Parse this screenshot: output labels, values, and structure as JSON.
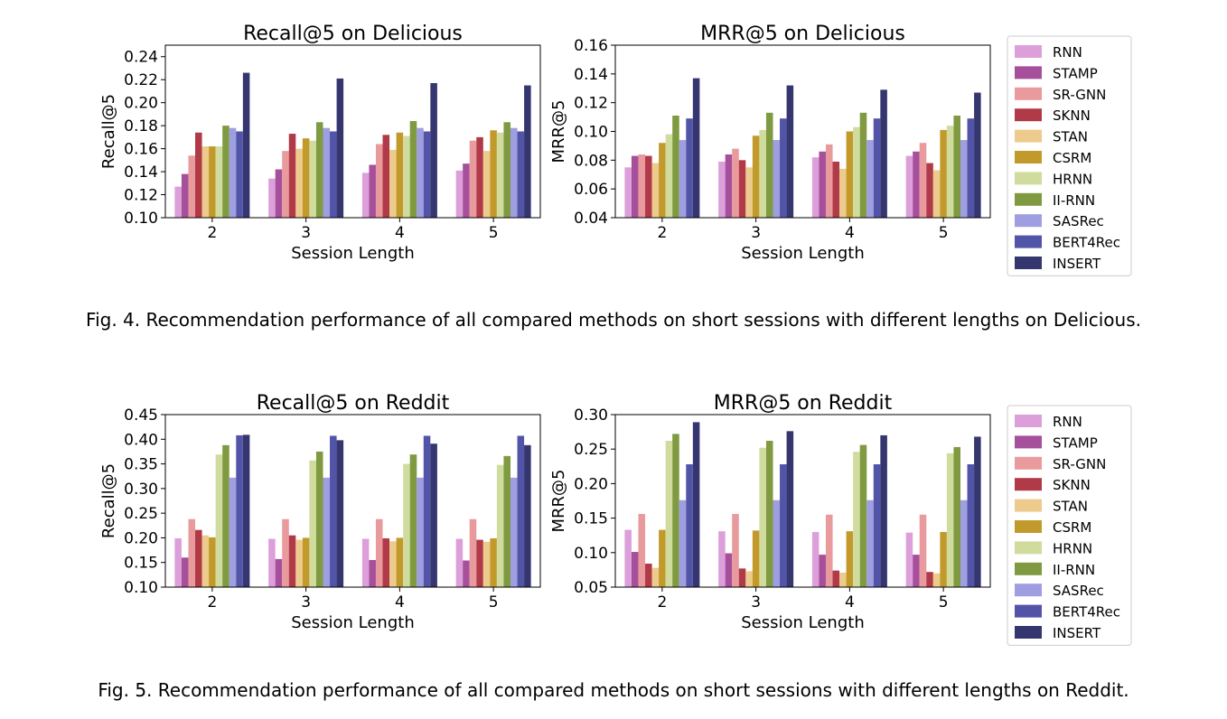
{
  "methods": [
    {
      "name": "RNN",
      "color": "#dd9fda"
    },
    {
      "name": "STAMP",
      "color": "#a6509b"
    },
    {
      "name": "SR-GNN",
      "color": "#e99a9c"
    },
    {
      "name": "SKNN",
      "color": "#b03a48"
    },
    {
      "name": "STAN",
      "color": "#eccb8c"
    },
    {
      "name": "CSRM",
      "color": "#c29a2b"
    },
    {
      "name": "HRNN",
      "color": "#cfdc9d"
    },
    {
      "name": "II-RNN",
      "color": "#7f9a41"
    },
    {
      "name": "SASRec",
      "color": "#9e9ee0"
    },
    {
      "name": "BERT4Rec",
      "color": "#5254a8"
    },
    {
      "name": "INSERT",
      "color": "#35366f"
    }
  ],
  "captions": {
    "fig4": "Fig. 4.  Recommendation performance of all compared methods on short sessions with different lengths on Delicious.",
    "fig5": "Fig. 5.  Recommendation performance of all compared methods on short sessions with different lengths on Reddit."
  },
  "chart_data": [
    {
      "type": "bar",
      "title": "Recall@5 on Delicious",
      "xlabel": "Session Length",
      "ylabel": "Recall@5",
      "categories": [
        "2",
        "3",
        "4",
        "5"
      ],
      "ylim": [
        0.1,
        0.25
      ],
      "yticks": [
        "0.10",
        "0.12",
        "0.14",
        "0.16",
        "0.18",
        "0.20",
        "0.22",
        "0.24"
      ],
      "legend": "right",
      "series": [
        {
          "name": "RNN",
          "values": [
            0.127,
            0.134,
            0.139,
            0.141
          ]
        },
        {
          "name": "STAMP",
          "values": [
            0.138,
            0.142,
            0.146,
            0.147
          ]
        },
        {
          "name": "SR-GNN",
          "values": [
            0.154,
            0.158,
            0.164,
            0.167
          ]
        },
        {
          "name": "SKNN",
          "values": [
            0.174,
            0.173,
            0.172,
            0.17
          ]
        },
        {
          "name": "STAN",
          "values": [
            0.162,
            0.16,
            0.159,
            0.158
          ]
        },
        {
          "name": "CSRM",
          "values": [
            0.162,
            0.169,
            0.174,
            0.176
          ]
        },
        {
          "name": "HRNN",
          "values": [
            0.162,
            0.167,
            0.171,
            0.174
          ]
        },
        {
          "name": "II-RNN",
          "values": [
            0.18,
            0.183,
            0.184,
            0.183
          ]
        },
        {
          "name": "SASRec",
          "values": [
            0.178,
            0.178,
            0.178,
            0.178
          ]
        },
        {
          "name": "BERT4Rec",
          "values": [
            0.175,
            0.175,
            0.175,
            0.175
          ]
        },
        {
          "name": "INSERT",
          "values": [
            0.226,
            0.221,
            0.217,
            0.215
          ]
        }
      ]
    },
    {
      "type": "bar",
      "title": "MRR@5 on Delicious",
      "xlabel": "Session Length",
      "ylabel": "MRR@5",
      "categories": [
        "2",
        "3",
        "4",
        "5"
      ],
      "ylim": [
        0.04,
        0.16
      ],
      "yticks": [
        "0.04",
        "0.06",
        "0.08",
        "0.10",
        "0.12",
        "0.14",
        "0.16"
      ],
      "legend": "right",
      "series": [
        {
          "name": "RNN",
          "values": [
            0.075,
            0.079,
            0.082,
            0.083
          ]
        },
        {
          "name": "STAMP",
          "values": [
            0.083,
            0.084,
            0.086,
            0.086
          ]
        },
        {
          "name": "SR-GNN",
          "values": [
            0.084,
            0.088,
            0.091,
            0.092
          ]
        },
        {
          "name": "SKNN",
          "values": [
            0.083,
            0.08,
            0.079,
            0.078
          ]
        },
        {
          "name": "STAN",
          "values": [
            0.078,
            0.075,
            0.074,
            0.073
          ]
        },
        {
          "name": "CSRM",
          "values": [
            0.092,
            0.097,
            0.1,
            0.101
          ]
        },
        {
          "name": "HRNN",
          "values": [
            0.098,
            0.101,
            0.103,
            0.104
          ]
        },
        {
          "name": "II-RNN",
          "values": [
            0.111,
            0.113,
            0.113,
            0.111
          ]
        },
        {
          "name": "SASRec",
          "values": [
            0.094,
            0.094,
            0.094,
            0.094
          ]
        },
        {
          "name": "BERT4Rec",
          "values": [
            0.109,
            0.109,
            0.109,
            0.109
          ]
        },
        {
          "name": "INSERT",
          "values": [
            0.137,
            0.132,
            0.129,
            0.127
          ]
        }
      ]
    },
    {
      "type": "bar",
      "title": "Recall@5 on Reddit",
      "xlabel": "Session Length",
      "ylabel": "Recall@5",
      "categories": [
        "2",
        "3",
        "4",
        "5"
      ],
      "ylim": [
        0.1,
        0.45
      ],
      "yticks": [
        "0.10",
        "0.15",
        "0.20",
        "0.25",
        "0.30",
        "0.35",
        "0.40",
        "0.45"
      ],
      "legend": "right",
      "series": [
        {
          "name": "RNN",
          "values": [
            0.199,
            0.198,
            0.198,
            0.198
          ]
        },
        {
          "name": "STAMP",
          "values": [
            0.16,
            0.157,
            0.155,
            0.154
          ]
        },
        {
          "name": "SR-GNN",
          "values": [
            0.238,
            0.238,
            0.238,
            0.238
          ]
        },
        {
          "name": "SKNN",
          "values": [
            0.216,
            0.205,
            0.199,
            0.196
          ]
        },
        {
          "name": "STAN",
          "values": [
            0.205,
            0.196,
            0.193,
            0.192
          ]
        },
        {
          "name": "CSRM",
          "values": [
            0.201,
            0.2,
            0.2,
            0.199
          ]
        },
        {
          "name": "HRNN",
          "values": [
            0.369,
            0.357,
            0.35,
            0.348
          ]
        },
        {
          "name": "II-RNN",
          "values": [
            0.388,
            0.375,
            0.369,
            0.366
          ]
        },
        {
          "name": "SASRec",
          "values": [
            0.322,
            0.322,
            0.322,
            0.322
          ]
        },
        {
          "name": "BERT4Rec",
          "values": [
            0.408,
            0.407,
            0.407,
            0.407
          ]
        },
        {
          "name": "INSERT",
          "values": [
            0.409,
            0.398,
            0.391,
            0.388
          ]
        }
      ]
    },
    {
      "type": "bar",
      "title": "MRR@5 on Reddit",
      "xlabel": "Session Length",
      "ylabel": "MRR@5",
      "categories": [
        "2",
        "3",
        "4",
        "5"
      ],
      "ylim": [
        0.05,
        0.3
      ],
      "yticks": [
        "0.05",
        "0.10",
        "0.15",
        "0.20",
        "0.25",
        "0.30"
      ],
      "legend": "right",
      "series": [
        {
          "name": "RNN",
          "values": [
            0.133,
            0.131,
            0.13,
            0.129
          ]
        },
        {
          "name": "STAMP",
          "values": [
            0.101,
            0.099,
            0.097,
            0.097
          ]
        },
        {
          "name": "SR-GNN",
          "values": [
            0.156,
            0.156,
            0.155,
            0.155
          ]
        },
        {
          "name": "SKNN",
          "values": [
            0.084,
            0.077,
            0.074,
            0.072
          ]
        },
        {
          "name": "STAN",
          "values": [
            0.078,
            0.073,
            0.071,
            0.07
          ]
        },
        {
          "name": "CSRM",
          "values": [
            0.133,
            0.132,
            0.131,
            0.13
          ]
        },
        {
          "name": "HRNN",
          "values": [
            0.262,
            0.252,
            0.246,
            0.244
          ]
        },
        {
          "name": "II-RNN",
          "values": [
            0.272,
            0.262,
            0.256,
            0.253
          ]
        },
        {
          "name": "SASRec",
          "values": [
            0.176,
            0.176,
            0.176,
            0.176
          ]
        },
        {
          "name": "BERT4Rec",
          "values": [
            0.228,
            0.228,
            0.228,
            0.228
          ]
        },
        {
          "name": "INSERT",
          "values": [
            0.289,
            0.276,
            0.27,
            0.268
          ]
        }
      ]
    }
  ]
}
